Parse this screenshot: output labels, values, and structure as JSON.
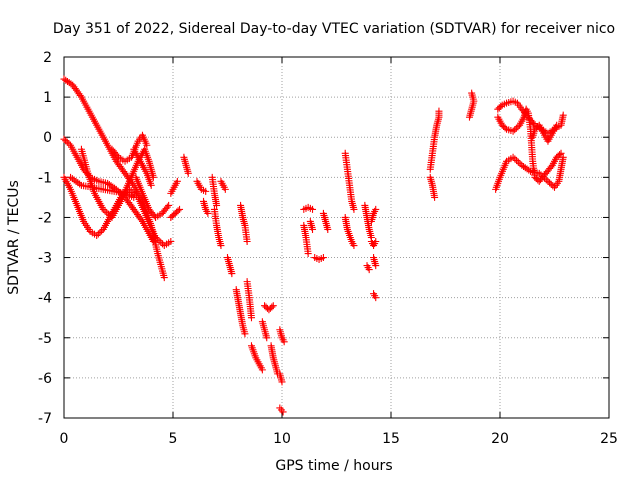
{
  "chart_data": {
    "type": "scatter",
    "title": "Day 351 of 2022, Sidereal Day-to-day VTEC variation (SDTVAR) for receiver nico",
    "xlabel": "GPS time / hours",
    "ylabel": "SDTVAR / TECUs",
    "xlim": [
      0,
      25
    ],
    "ylim": [
      -7,
      2
    ],
    "xticks": [
      0,
      5,
      10,
      15,
      20,
      25
    ],
    "yticks": [
      -7,
      -6,
      -5,
      -4,
      -3,
      -2,
      -1,
      0,
      1,
      2
    ],
    "grid": true,
    "marker": "+",
    "series": [
      {
        "name": "SDTVAR",
        "color": "#ff0000",
        "tracks": [
          [
            [
              0.0,
              1.45
            ],
            [
              0.4,
              1.3
            ],
            [
              0.8,
              1.0
            ],
            [
              1.2,
              0.6
            ],
            [
              1.6,
              0.2
            ],
            [
              2.0,
              -0.2
            ],
            [
              2.4,
              -0.6
            ],
            [
              2.8,
              -0.9
            ],
            [
              3.2,
              -1.2
            ],
            [
              3.6,
              -1.6
            ],
            [
              4.0,
              -2.2
            ],
            [
              4.3,
              -2.9
            ],
            [
              4.6,
              -3.5
            ]
          ],
          [
            [
              0.0,
              -0.05
            ],
            [
              0.3,
              -0.2
            ],
            [
              0.6,
              -0.5
            ],
            [
              0.9,
              -0.8
            ],
            [
              1.2,
              -1.0
            ],
            [
              1.6,
              -1.1
            ],
            [
              2.0,
              -1.15
            ],
            [
              2.4,
              -1.3
            ],
            [
              2.8,
              -1.5
            ],
            [
              3.2,
              -1.8
            ],
            [
              3.6,
              -2.1
            ],
            [
              3.9,
              -2.4
            ],
            [
              4.1,
              -2.6
            ]
          ],
          [
            [
              0.0,
              -1.0
            ],
            [
              0.3,
              -1.3
            ],
            [
              0.6,
              -1.7
            ],
            [
              0.9,
              -2.1
            ],
            [
              1.2,
              -2.35
            ],
            [
              1.5,
              -2.45
            ],
            [
              1.8,
              -2.3
            ],
            [
              2.2,
              -1.9
            ],
            [
              2.6,
              -1.5
            ],
            [
              3.0,
              -1.3
            ],
            [
              3.4,
              -1.5
            ],
            [
              3.8,
              -2.0
            ],
            [
              4.2,
              -2.5
            ],
            [
              4.6,
              -2.7
            ],
            [
              4.9,
              -2.6
            ]
          ],
          [
            [
              0.8,
              -0.3
            ],
            [
              1.1,
              -0.9
            ],
            [
              1.4,
              -1.4
            ],
            [
              1.8,
              -1.8
            ],
            [
              2.2,
              -2.0
            ],
            [
              2.6,
              -1.6
            ],
            [
              3.0,
              -1.1
            ],
            [
              3.4,
              -0.6
            ],
            [
              3.7,
              -0.3
            ],
            [
              3.9,
              -0.6
            ],
            [
              4.1,
              -1.0
            ]
          ],
          [
            [
              2.2,
              -0.3
            ],
            [
              2.5,
              -0.5
            ],
            [
              2.8,
              -0.6
            ],
            [
              3.1,
              -0.5
            ],
            [
              3.4,
              -0.1
            ],
            [
              3.6,
              0.05
            ],
            [
              3.8,
              -0.2
            ]
          ],
          [
            [
              0.3,
              -1.0
            ],
            [
              0.8,
              -1.2
            ],
            [
              1.3,
              -1.25
            ],
            [
              1.8,
              -1.3
            ],
            [
              2.3,
              -1.35
            ],
            [
              2.8,
              -1.4
            ],
            [
              3.2,
              -1.5
            ]
          ],
          [
            [
              3.3,
              -1.0
            ],
            [
              3.6,
              -1.4
            ],
            [
              3.9,
              -1.8
            ],
            [
              4.2,
              -2.0
            ],
            [
              4.5,
              -1.9
            ],
            [
              4.8,
              -1.7
            ]
          ],
          [
            [
              3.2,
              -0.3
            ],
            [
              3.5,
              -0.6
            ],
            [
              3.8,
              -0.9
            ],
            [
              4.0,
              -1.2
            ]
          ],
          [
            [
              4.9,
              -2.0
            ],
            [
              5.1,
              -1.9
            ],
            [
              5.3,
              -1.8
            ]
          ],
          [
            [
              4.9,
              -1.4
            ],
            [
              5.1,
              -1.2
            ],
            [
              5.2,
              -1.1
            ]
          ],
          [
            [
              5.5,
              -0.5
            ],
            [
              5.6,
              -0.7
            ],
            [
              5.7,
              -0.9
            ]
          ],
          [
            [
              6.1,
              -1.1
            ],
            [
              6.3,
              -1.3
            ],
            [
              6.5,
              -1.35
            ]
          ],
          [
            [
              6.4,
              -1.6
            ],
            [
              6.5,
              -1.8
            ],
            [
              6.6,
              -1.9
            ]
          ],
          [
            [
              6.8,
              -1.0
            ],
            [
              6.9,
              -1.4
            ],
            [
              7.0,
              -1.7
            ]
          ],
          [
            [
              6.9,
              -1.8
            ],
            [
              7.0,
              -2.2
            ],
            [
              7.1,
              -2.5
            ],
            [
              7.2,
              -2.7
            ]
          ],
          [
            [
              7.2,
              -1.1
            ],
            [
              7.3,
              -1.2
            ],
            [
              7.4,
              -1.3
            ]
          ],
          [
            [
              7.5,
              -3.0
            ],
            [
              7.6,
              -3.2
            ],
            [
              7.7,
              -3.4
            ]
          ],
          [
            [
              7.9,
              -3.8
            ],
            [
              8.0,
              -4.1
            ],
            [
              8.1,
              -4.4
            ],
            [
              8.2,
              -4.7
            ],
            [
              8.3,
              -4.9
            ]
          ],
          [
            [
              8.1,
              -1.7
            ],
            [
              8.2,
              -2.0
            ],
            [
              8.3,
              -2.2
            ],
            [
              8.4,
              -2.6
            ]
          ],
          [
            [
              8.4,
              -3.6
            ],
            [
              8.5,
              -4.0
            ],
            [
              8.6,
              -4.5
            ]
          ],
          [
            [
              8.6,
              -5.2
            ],
            [
              8.8,
              -5.5
            ],
            [
              9.0,
              -5.7
            ],
            [
              9.1,
              -5.8
            ]
          ],
          [
            [
              9.1,
              -4.6
            ],
            [
              9.2,
              -4.8
            ],
            [
              9.3,
              -5.0
            ]
          ],
          [
            [
              9.2,
              -4.2
            ],
            [
              9.4,
              -4.3
            ],
            [
              9.6,
              -4.2
            ]
          ],
          [
            [
              9.5,
              -5.2
            ],
            [
              9.6,
              -5.5
            ],
            [
              9.7,
              -5.7
            ],
            [
              9.8,
              -5.9
            ]
          ],
          [
            [
              9.9,
              -4.8
            ],
            [
              10.0,
              -5.0
            ],
            [
              10.1,
              -5.1
            ]
          ],
          [
            [
              9.9,
              -5.9
            ],
            [
              10.0,
              -6.1
            ]
          ],
          [
            [
              9.9,
              -6.75
            ],
            [
              10.05,
              -6.85
            ]
          ],
          [
            [
              11.0,
              -1.8
            ],
            [
              11.2,
              -1.75
            ],
            [
              11.4,
              -1.8
            ]
          ],
          [
            [
              11.0,
              -2.2
            ],
            [
              11.1,
              -2.5
            ],
            [
              11.2,
              -2.9
            ]
          ],
          [
            [
              11.3,
              -2.1
            ],
            [
              11.4,
              -2.3
            ]
          ],
          [
            [
              11.5,
              -3.0
            ],
            [
              11.7,
              -3.05
            ],
            [
              11.9,
              -3.0
            ]
          ],
          [
            [
              11.9,
              -1.9
            ],
            [
              12.0,
              -2.1
            ],
            [
              12.1,
              -2.3
            ]
          ],
          [
            [
              12.9,
              -0.4
            ],
            [
              13.0,
              -0.8
            ],
            [
              13.1,
              -1.2
            ],
            [
              13.2,
              -1.6
            ],
            [
              13.3,
              -1.8
            ]
          ],
          [
            [
              12.9,
              -2.0
            ],
            [
              13.0,
              -2.3
            ],
            [
              13.2,
              -2.6
            ],
            [
              13.3,
              -2.7
            ]
          ],
          [
            [
              13.8,
              -1.7
            ],
            [
              13.9,
              -2.0
            ],
            [
              14.0,
              -2.3
            ],
            [
              14.1,
              -2.5
            ]
          ],
          [
            [
              13.9,
              -3.2
            ],
            [
              14.0,
              -3.3
            ]
          ],
          [
            [
              14.1,
              -2.1
            ],
            [
              14.2,
              -1.9
            ],
            [
              14.3,
              -1.8
            ]
          ],
          [
            [
              14.1,
              -2.6
            ],
            [
              14.2,
              -2.7
            ],
            [
              14.3,
              -2.6
            ]
          ],
          [
            [
              14.2,
              -3.0
            ],
            [
              14.3,
              -3.2
            ]
          ],
          [
            [
              14.2,
              -3.9
            ],
            [
              14.3,
              -4.0
            ]
          ],
          [
            [
              16.8,
              -0.8
            ],
            [
              16.9,
              -0.4
            ],
            [
              17.0,
              0.0
            ],
            [
              17.1,
              0.3
            ],
            [
              17.2,
              0.5
            ],
            [
              17.2,
              0.65
            ]
          ],
          [
            [
              16.8,
              -1.0
            ],
            [
              16.9,
              -1.2
            ],
            [
              17.0,
              -1.5
            ]
          ],
          [
            [
              18.6,
              0.5
            ],
            [
              18.7,
              0.7
            ],
            [
              18.8,
              0.9
            ],
            [
              18.7,
              1.1
            ]
          ],
          [
            [
              19.8,
              -1.3
            ],
            [
              20.0,
              -1.0
            ],
            [
              20.3,
              -0.6
            ],
            [
              20.6,
              -0.5
            ],
            [
              21.0,
              -0.7
            ],
            [
              21.4,
              -0.85
            ],
            [
              21.8,
              -0.9
            ],
            [
              22.2,
              -1.1
            ],
            [
              22.5,
              -1.25
            ],
            [
              22.7,
              -1.1
            ],
            [
              22.8,
              -0.8
            ],
            [
              22.9,
              -0.5
            ]
          ],
          [
            [
              19.9,
              0.7
            ],
            [
              20.1,
              0.8
            ],
            [
              20.3,
              0.85
            ],
            [
              20.6,
              0.9
            ],
            [
              20.8,
              0.85
            ],
            [
              21.0,
              0.7
            ],
            [
              21.3,
              0.5
            ],
            [
              21.6,
              0.3
            ],
            [
              21.9,
              0.2
            ],
            [
              22.2,
              0.1
            ],
            [
              22.5,
              0.2
            ],
            [
              22.8,
              0.3
            ],
            [
              22.9,
              0.55
            ]
          ],
          [
            [
              19.9,
              0.5
            ],
            [
              20.1,
              0.3
            ],
            [
              20.3,
              0.2
            ],
            [
              20.6,
              0.15
            ],
            [
              20.9,
              0.3
            ],
            [
              21.1,
              0.5
            ],
            [
              21.2,
              0.7
            ],
            [
              21.3,
              0.6
            ],
            [
              21.4,
              0.2
            ],
            [
              21.45,
              -0.2
            ],
            [
              21.5,
              -0.6
            ],
            [
              21.6,
              -1.0
            ],
            [
              21.8,
              -1.1
            ],
            [
              22.1,
              -0.9
            ],
            [
              22.4,
              -0.7
            ],
            [
              22.6,
              -0.5
            ],
            [
              22.8,
              -0.4
            ]
          ],
          [
            [
              21.5,
              0.0
            ],
            [
              21.6,
              0.2
            ],
            [
              21.8,
              0.3
            ],
            [
              22.0,
              0.1
            ],
            [
              22.2,
              -0.1
            ],
            [
              22.4,
              0.1
            ],
            [
              22.6,
              0.3
            ]
          ]
        ]
      }
    ]
  }
}
